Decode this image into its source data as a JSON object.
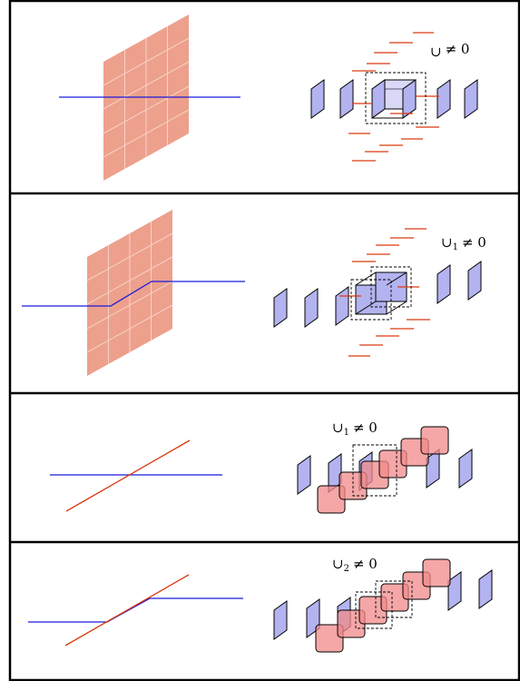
{
  "panels": [
    {
      "id": "panel-1",
      "label": {
        "sym": "∪",
        "sub": "",
        "rel": "≠ 0"
      }
    },
    {
      "id": "panel-2",
      "label": {
        "sym": "∪",
        "sub": "1",
        "rel": "≠ 0"
      }
    },
    {
      "id": "panel-3",
      "label": {
        "sym": "∪",
        "sub": "1",
        "rel": "≠ 0"
      }
    },
    {
      "id": "panel-4",
      "label": {
        "sym": "∪",
        "sub": "2",
        "rel": "≠ 0"
      }
    }
  ],
  "colors": {
    "frame": "#000000",
    "blue_line": "#1a1adb",
    "red_line": "#d93a10",
    "membrane_fill": "#eda08c",
    "membrane_grid": "#f6d2c6",
    "blue_plaquette": "#b3b3f0",
    "red_plaquette": "#f28a8a",
    "dashed_box": "#000000"
  }
}
